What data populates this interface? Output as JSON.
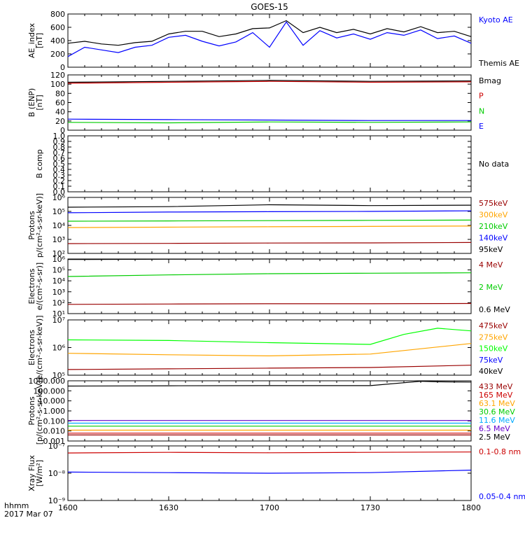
{
  "title": "GOES-15",
  "footer": {
    "hhmm": "hhmm",
    "date": "2017 Mar 07"
  },
  "x_ticks": [
    "1600",
    "1630",
    "1700",
    "1730",
    "1800"
  ],
  "chart_data": [
    {
      "type": "line",
      "ylabel": [
        "AE_index",
        "[nT]"
      ],
      "ylim": [
        0,
        800
      ],
      "y_ticks": [
        "0",
        "200",
        "400",
        "600",
        "800"
      ],
      "x_range": [
        "16:00",
        "18:00"
      ],
      "series": [
        {
          "name": "Kyoto AE",
          "color": "#0000ff",
          "x": [
            "16:00",
            "16:05",
            "16:10",
            "16:15",
            "16:20",
            "16:25",
            "16:30",
            "16:35",
            "16:40",
            "16:45",
            "16:50",
            "16:55",
            "17:00",
            "17:05",
            "17:10",
            "17:15",
            "17:20",
            "17:25",
            "17:30",
            "17:35",
            "17:40",
            "17:45",
            "17:50",
            "17:55",
            "18:00"
          ],
          "values": [
            160,
            300,
            260,
            220,
            300,
            330,
            450,
            480,
            390,
            320,
            380,
            520,
            300,
            680,
            330,
            550,
            440,
            500,
            420,
            520,
            480,
            560,
            430,
            470,
            360
          ]
        },
        {
          "name": "Themis AE",
          "color": "#000000",
          "x": [
            "16:00",
            "16:05",
            "16:10",
            "16:15",
            "16:20",
            "16:25",
            "16:30",
            "16:35",
            "16:40",
            "16:45",
            "16:50",
            "16:55",
            "17:00",
            "17:05",
            "17:10",
            "17:15",
            "17:20",
            "17:25",
            "17:30",
            "17:35",
            "17:40",
            "17:45",
            "17:50",
            "17:55",
            "18:00"
          ],
          "values": [
            360,
            390,
            350,
            330,
            370,
            390,
            500,
            540,
            540,
            460,
            500,
            580,
            590,
            700,
            520,
            600,
            520,
            570,
            500,
            580,
            530,
            610,
            520,
            540,
            460
          ]
        }
      ]
    },
    {
      "type": "line",
      "ylabel": [
        "B (ENP)",
        "[nT]"
      ],
      "ylim": [
        0,
        120
      ],
      "y_ticks": [
        "0",
        "20",
        "40",
        "60",
        "80",
        "100",
        "120"
      ],
      "series": [
        {
          "name": "Bmag",
          "color": "#000000",
          "x": [
            "16:00",
            "16:30",
            "17:00",
            "17:30",
            "18:00"
          ],
          "values": [
            104,
            106,
            108,
            106,
            107
          ]
        },
        {
          "name": "P",
          "color": "#cc0000",
          "x": [
            "16:00",
            "16:30",
            "17:00",
            "17:30",
            "18:00"
          ],
          "values": [
            102,
            104,
            106,
            104,
            105
          ]
        },
        {
          "name": "N",
          "color": "#00cc00",
          "x": [
            "16:00",
            "16:30",
            "17:00",
            "17:30",
            "18:00"
          ],
          "values": [
            17,
            16,
            18,
            17,
            18
          ]
        },
        {
          "name": "E",
          "color": "#0000ff",
          "x": [
            "16:00",
            "16:30",
            "17:00",
            "17:30",
            "18:00"
          ],
          "values": [
            24,
            23,
            22,
            21,
            21
          ]
        }
      ]
    },
    {
      "type": "line",
      "ylabel": [
        "B comp"
      ],
      "ylim": [
        0,
        1
      ],
      "y_ticks": [
        "0.0",
        "0.1",
        "0.2",
        "0.3",
        "0.4",
        "0.5",
        "0.6",
        "0.7",
        "0.8",
        "0.9",
        "1.0"
      ],
      "series": [],
      "no_data_text": "No data"
    },
    {
      "type": "line",
      "ylabel": [
        "Protons",
        "p/(cm²-s-sr-keV)]"
      ],
      "yscale": "log",
      "ylim": [
        100,
        1000000
      ],
      "y_ticks": [
        "10²",
        "10³",
        "10⁴",
        "10⁵",
        "10⁶"
      ],
      "series": [
        {
          "name": "575keV",
          "color": "#990000",
          "x": [
            "16:00",
            "16:30",
            "17:00",
            "17:30",
            "18:00"
          ],
          "values": [
            500,
            520,
            550,
            560,
            600
          ]
        },
        {
          "name": "300keV",
          "color": "#ffa500",
          "x": [
            "16:00",
            "16:30",
            "17:00",
            "17:30",
            "18:00"
          ],
          "values": [
            7000,
            7500,
            8000,
            8500,
            9000
          ]
        },
        {
          "name": "210keV",
          "color": "#00cc00",
          "x": [
            "16:00",
            "16:30",
            "17:00",
            "17:30",
            "18:00"
          ],
          "values": [
            20000,
            21000,
            22000,
            23000,
            24000
          ]
        },
        {
          "name": "140keV",
          "color": "#0000ff",
          "x": [
            "16:00",
            "16:30",
            "17:00",
            "17:30",
            "18:00"
          ],
          "values": [
            80000,
            90000,
            95000,
            100000,
            110000
          ]
        },
        {
          "name": "95keV",
          "color": "#000000",
          "x": [
            "16:00",
            "16:30",
            "17:00",
            "17:30",
            "18:00"
          ],
          "values": [
            200000,
            220000,
            300000,
            260000,
            280000
          ]
        }
      ]
    },
    {
      "type": "line",
      "ylabel": [
        "Electrons",
        "e/(cm²-s-sr)]"
      ],
      "yscale": "log",
      "ylim": [
        10,
        1000000
      ],
      "y_ticks": [
        "10¹",
        "10²",
        "10³",
        "10⁴",
        "10⁵",
        "10⁶"
      ],
      "series": [
        {
          "name": "4 MeV",
          "color": "#990000",
          "x": [
            "16:00",
            "16:30",
            "17:00",
            "17:30",
            "18:00"
          ],
          "values": [
            70,
            75,
            80,
            80,
            85
          ]
        },
        {
          "name": "2 MeV",
          "color": "#00cc00",
          "x": [
            "16:00",
            "16:30",
            "17:00",
            "17:30",
            "18:00"
          ],
          "values": [
            25000,
            35000,
            45000,
            50000,
            55000
          ]
        },
        {
          "name": "0.6 MeV",
          "color": "#000000",
          "x": [
            "16:00",
            "16:30",
            "17:00",
            "17:30",
            "18:00"
          ],
          "values": [
            900000,
            950000,
            1000000,
            1000000,
            1000000
          ]
        }
      ]
    },
    {
      "type": "line",
      "ylabel": [
        "Electrons",
        "e/(cm²-s-sr-keV)]"
      ],
      "yscale": "log",
      "ylim": [
        100000,
        10000000
      ],
      "y_ticks": [
        "10⁵",
        "10⁶",
        "10⁷"
      ],
      "series": [
        {
          "name": "475keV",
          "color": "#990000",
          "x": [
            "16:00",
            "16:30",
            "17:00",
            "17:30",
            "18:00"
          ],
          "values": [
            160000,
            170000,
            180000,
            190000,
            230000
          ]
        },
        {
          "name": "275keV",
          "color": "#ffa500",
          "x": [
            "16:00",
            "16:30",
            "17:00",
            "17:30",
            "18:00"
          ],
          "values": [
            620000,
            550000,
            500000,
            580000,
            1400000
          ]
        },
        {
          "name": "150keV",
          "color": "#00ff00",
          "x": [
            "16:00",
            "16:30",
            "17:00",
            "17:30",
            "17:40",
            "17:50",
            "18:00"
          ],
          "values": [
            1900000,
            1800000,
            1500000,
            1300000,
            3000000,
            5000000,
            4000000
          ]
        },
        {
          "name": "75keV",
          "color": "#0000ff",
          "x": [],
          "values": []
        },
        {
          "name": "40keV",
          "color": "#000000",
          "x": [],
          "values": []
        }
      ]
    },
    {
      "type": "line",
      "ylabel": [
        "Protons",
        "[p/(cm²-s-sr-keV)]"
      ],
      "yscale": "log",
      "ylim": [
        0.001,
        1000
      ],
      "y_ticks": [
        "0.001",
        "0.010",
        "0.100",
        "1.000",
        "10.000",
        "100.000",
        "1000.000"
      ],
      "series": [
        {
          "name": "433 MeV",
          "color": "#990000",
          "x": [
            "16:00",
            "16:30",
            "17:00",
            "17:30",
            "18:00"
          ],
          "values": [
            0.004,
            0.004,
            0.004,
            0.004,
            0.004
          ]
        },
        {
          "name": "165 MeV",
          "color": "#cc0000",
          "x": [
            "16:00",
            "16:30",
            "17:00",
            "17:30",
            "18:00"
          ],
          "values": [
            0.006,
            0.006,
            0.006,
            0.006,
            0.006
          ]
        },
        {
          "name": "63.1 MeV",
          "color": "#ffa500",
          "x": [
            "16:00",
            "16:30",
            "17:00",
            "17:30",
            "18:00"
          ],
          "values": [
            0.012,
            0.012,
            0.012,
            0.012,
            0.012
          ]
        },
        {
          "name": "30.6 MeV",
          "color": "#00cc00",
          "x": [
            "16:00",
            "16:30",
            "17:00",
            "17:30",
            "18:00"
          ],
          "values": [
            0.03,
            0.03,
            0.03,
            0.03,
            0.03
          ]
        },
        {
          "name": "11.6 MeV",
          "color": "#00aaff",
          "x": [
            "16:00",
            "16:30",
            "17:00",
            "17:30",
            "18:00"
          ],
          "values": [
            0.06,
            0.06,
            0.06,
            0.06,
            0.06
          ]
        },
        {
          "name": "6.5 MeV",
          "color": "#6600cc",
          "x": [
            "16:00",
            "16:30",
            "17:00",
            "17:30",
            "18:00"
          ],
          "values": [
            0.11,
            0.11,
            0.11,
            0.11,
            0.11
          ]
        },
        {
          "name": "2.5 MeV",
          "color": "#000000",
          "x": [
            "16:00",
            "16:30",
            "17:00",
            "17:30",
            "17:45",
            "17:50",
            "18:00"
          ],
          "values": [
            300,
            320,
            330,
            330,
            900,
            800,
            750
          ]
        }
      ]
    },
    {
      "type": "line",
      "ylabel": [
        "Xray Flux",
        "[W/m²]"
      ],
      "yscale": "log",
      "ylim": [
        1e-09,
        1e-07
      ],
      "y_ticks": [
        "10⁻⁹",
        "10⁻⁸",
        "10⁻⁷"
      ],
      "series": [
        {
          "name": "0.1-0.8 nm",
          "color": "#cc0000",
          "x": [
            "16:00",
            "16:30",
            "17:00",
            "17:30",
            "18:00"
          ],
          "values": [
            5.5e-08,
            5.8e-08,
            5.6e-08,
            5.8e-08,
            6e-08
          ]
        },
        {
          "name": "0.05-0.4 nm",
          "color": "#0000ff",
          "x": [
            "16:00",
            "16:30",
            "17:00",
            "17:30",
            "18:00"
          ],
          "values": [
            1.1e-08,
            1.05e-08,
            1e-08,
            1.05e-08,
            1.3e-08
          ]
        }
      ]
    }
  ]
}
